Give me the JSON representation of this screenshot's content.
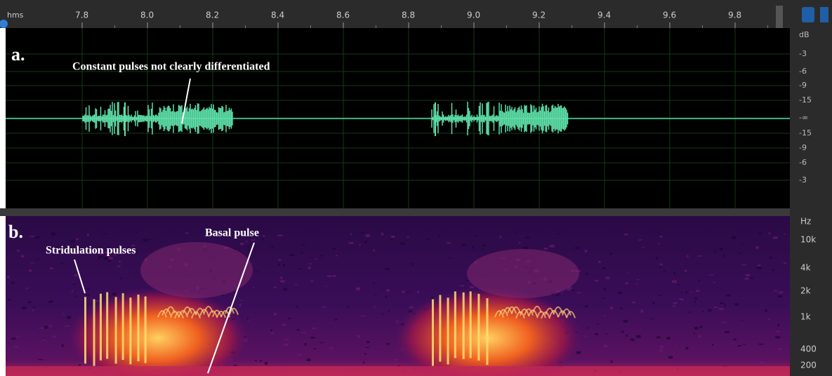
{
  "ruler": {
    "unit": "hms",
    "labels": [
      "7.8",
      "8.0",
      "8.2",
      "8.4",
      "8.6",
      "8.8",
      "9.0",
      "9.2",
      "9.4",
      "9.6",
      "9.8"
    ]
  },
  "panel_a": {
    "label": "a.",
    "annotation": "Constant pulses not clearly differentiated",
    "db_scale": [
      "dB",
      "-3",
      "-6",
      "-9",
      "-15",
      "-∞",
      "-15",
      "-9",
      "-6",
      "-3"
    ]
  },
  "panel_b": {
    "label": "b.",
    "annotations": [
      "Stridulation pulses",
      "Basal pulse"
    ],
    "hz_scale": [
      "Hz",
      "10k",
      "4k",
      "2k",
      "1k",
      "400",
      "200"
    ]
  }
}
